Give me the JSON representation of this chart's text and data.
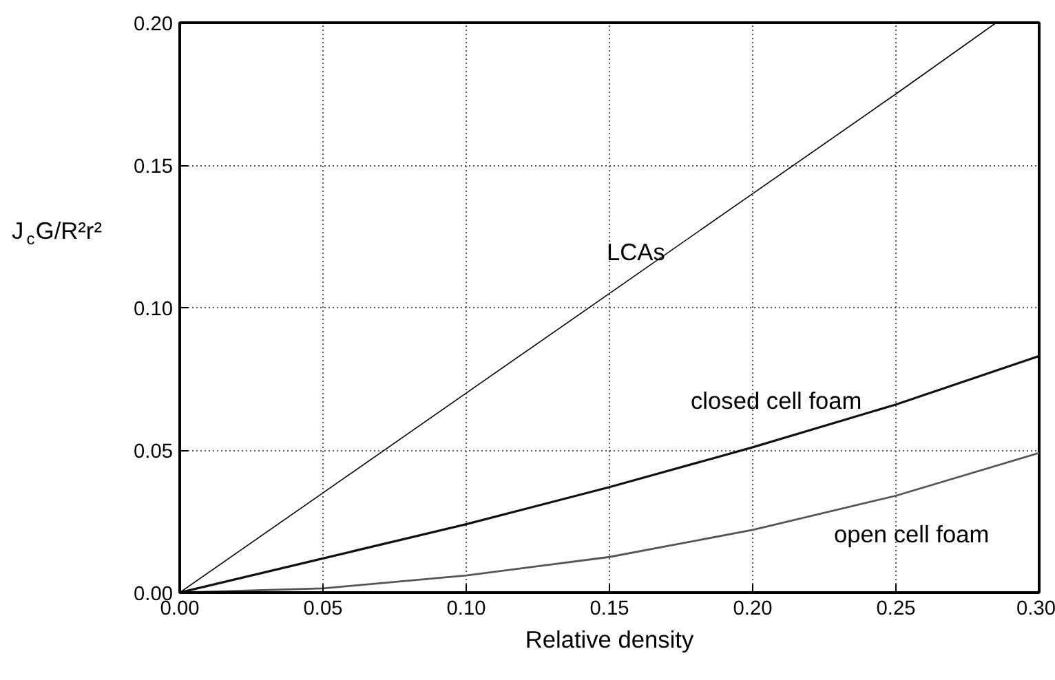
{
  "chart_data": {
    "type": "line",
    "xlabel": "Relative density",
    "ylabel": "J$_{c}$G/R²r²",
    "xlim": [
      0,
      0.3
    ],
    "ylim": [
      0,
      0.2
    ],
    "xticks": [
      {
        "value": 0,
        "label": "0.00"
      },
      {
        "value": 0.05,
        "label": "0.05"
      },
      {
        "value": 0.1,
        "label": "0.10"
      },
      {
        "value": 0.15,
        "label": "0.15"
      },
      {
        "value": 0.2,
        "label": "0.20"
      },
      {
        "value": 0.25,
        "label": "0.25"
      },
      {
        "value": 0.3,
        "label": "0.30"
      }
    ],
    "yticks": [
      {
        "value": 0,
        "label": "0.00"
      },
      {
        "value": 0.05,
        "label": "0.05"
      },
      {
        "value": 0.1,
        "label": "0.10"
      },
      {
        "value": 0.15,
        "label": "0.15"
      },
      {
        "value": 0.2,
        "label": "0.20"
      }
    ],
    "grid": true,
    "line_style": "solid",
    "marker": "none",
    "series": [
      {
        "name": "LCAs",
        "color": "#000000",
        "x": [
          0,
          0.05,
          0.1,
          0.15,
          0.2,
          0.25,
          0.285
        ],
        "values": [
          0,
          0.035,
          0.07,
          0.105,
          0.14,
          0.175,
          0.2
        ]
      },
      {
        "name": "closed cell foam",
        "color": "#111111",
        "x": [
          0,
          0.05,
          0.1,
          0.15,
          0.2,
          0.25,
          0.3
        ],
        "values": [
          0,
          0.012,
          0.024,
          0.037,
          0.051,
          0.066,
          0.083
        ]
      },
      {
        "name": "open cell foam",
        "color": "#555555",
        "x": [
          0,
          0.05,
          0.1,
          0.15,
          0.2,
          0.25,
          0.3
        ],
        "values": [
          0,
          0.0015,
          0.006,
          0.0125,
          0.022,
          0.034,
          0.049
        ]
      }
    ]
  }
}
